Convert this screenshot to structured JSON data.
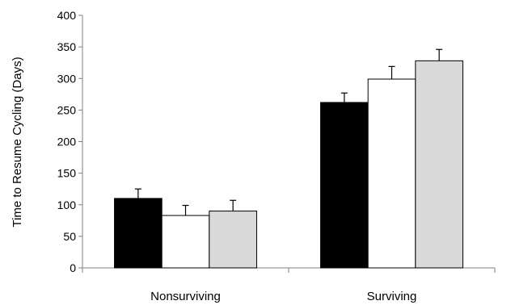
{
  "chart_data": {
    "type": "bar",
    "title": "",
    "xlabel": "",
    "ylabel": "Time to Resume Cycling (Days)",
    "ylim": [
      0,
      400
    ],
    "yticks": [
      0,
      50,
      100,
      150,
      200,
      250,
      300,
      350,
      400
    ],
    "categories": [
      "Nonsurviving",
      "Surviving"
    ],
    "grid": false,
    "legend": "none",
    "series": [
      {
        "color": "#000000",
        "values": [
          110,
          262
        ],
        "errors": [
          15,
          15
        ]
      },
      {
        "color": "#ffffff",
        "values": [
          83,
          299
        ],
        "errors": [
          16,
          20
        ]
      },
      {
        "color": "#d9d9d9",
        "values": [
          90,
          328
        ],
        "errors": [
          17,
          18
        ]
      }
    ]
  }
}
